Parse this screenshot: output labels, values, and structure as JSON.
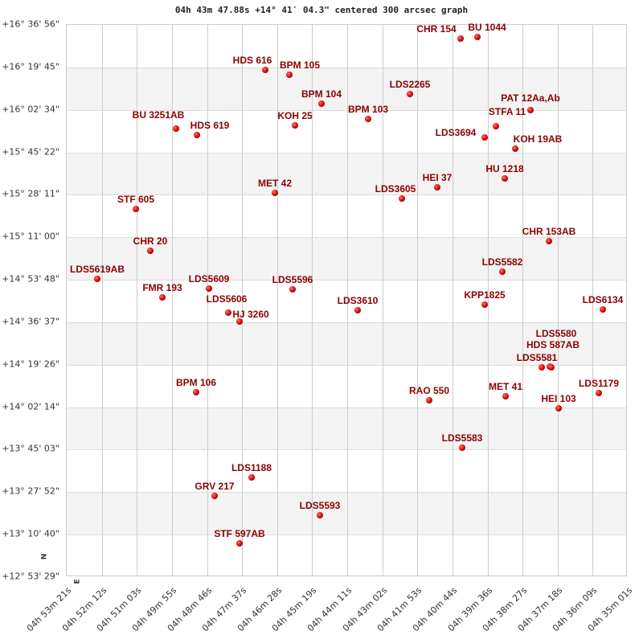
{
  "title": "04h 43m 47.88s +14° 41′ 04.3\" centered 300 arcsec graph",
  "chart_data": {
    "type": "scatter",
    "title": "04h 43m 47.88s +14° 41′ 04.3\" centered 300 arcsec graph",
    "x_ticks": [
      "04h 53m 21s",
      "04h 52m 12s",
      "04h 51m 03s",
      "04h 49m 55s",
      "04h 48m 46s",
      "04h 47m 37s",
      "04h 46m 28s",
      "04h 45m 19s",
      "04h 44m 11s",
      "04h 43m 02s",
      "04h 41m 53s",
      "04h 40m 44s",
      "04h 39m 36s",
      "04h 38m 27s",
      "04h 37m 18s",
      "04h 36m 09s",
      "04h 35m 01s"
    ],
    "y_ticks": [
      "+16° 36' 56\"",
      "+16° 19' 45\"",
      "+16° 02' 34\"",
      "+15° 45' 22\"",
      "+15° 28' 11\"",
      "+15° 11' 00\"",
      "+14° 53' 48\"",
      "+14° 36' 37\"",
      "+14° 19' 26\"",
      "+14° 02' 14\"",
      "+13° 45' 03\"",
      "+13° 27' 52\"",
      "+13° 10' 40\"",
      "+12° 53' 29\""
    ],
    "axis_markers": {
      "north": "N",
      "east": "E"
    },
    "point_color": "#cc0000",
    "label_color": "#8b0000",
    "stars": [
      "CHR 154",
      "BU 1044",
      "HDS 616",
      "BPM 105",
      "LDS2265",
      "BPM 104",
      "BPM 103",
      "PAT  12Aa,Ab",
      "BU 3251AB",
      "HDS 619",
      "KOH  25",
      "STFA 11",
      "LDS3694",
      "KOH  19AB",
      "HEI  37",
      "LDS3605",
      "MET  42",
      "HU 1218",
      "STF 605",
      "CHR  20",
      "CHR 153AB",
      "LDS5582",
      "LDS5619AB",
      "LDS5609",
      "LDS5596",
      "FMR 193",
      "LDS5606",
      "HJ 3260",
      "LDS3610",
      "KPP1825",
      "LDS6134",
      "LDS5581",
      "HDS 587AB",
      "LDS5580",
      "LDS1179",
      "BPM 106",
      "RAO 550",
      "MET  41",
      "HEI 103",
      "LDS5583",
      "LDS1188",
      "GRV 217",
      "LDS5593",
      "STF 597AB"
    ]
  }
}
